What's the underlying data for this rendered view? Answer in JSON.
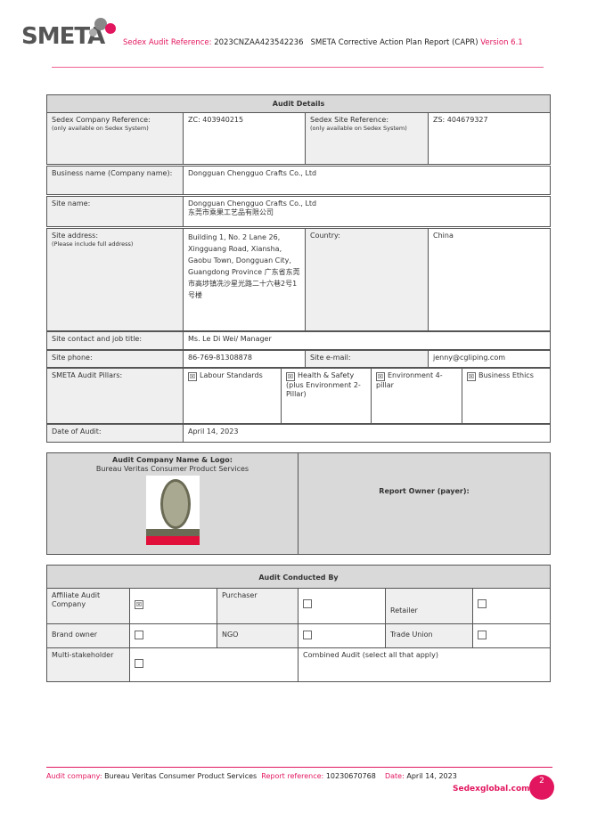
{
  "header": {
    "logo_text": "SMETA",
    "audit_ref_label": "Sedex Audit Reference:",
    "audit_ref_value": "2023CNZAA423542236",
    "report_title": "SMETA Corrective Action Plan Report (CAPR)",
    "version": "Version 6.1"
  },
  "audit_details": {
    "title": "Audit Details",
    "company_ref_label": "Sedex Company Reference:",
    "company_ref_note": "(only available on Sedex System)",
    "company_ref_value": "ZC: 403940215",
    "site_ref_label": "Sedex Site Reference:",
    "site_ref_note": "(only available on Sedex System)",
    "site_ref_value": "ZS: 404679327",
    "business_name_label": "Business name (Company name):",
    "business_name_value": "Dongguan Chengguo Crafts Co., Ltd",
    "site_name_label": "Site name:",
    "site_name_value": "Dongguan Chengguo Crafts Co., Ltd",
    "site_name_value_cn": "东莞市乘果工艺品有限公司",
    "site_address_label": "Site address:",
    "site_address_note": "(Please include full address)",
    "site_address_value": "Building 1, No. 2 Lane 26, Xingguang Road, Xiansha, Gaobu Town, Dongguan City, Guangdong Province",
    "site_address_value_cn": "广东省东莞市高埗镇冼沙星光路二十六巷2号1号楼",
    "country_label": "Country:",
    "country_value": "China",
    "contact_label": "Site contact and job title:",
    "contact_value": "Ms. Le Di Wei/ Manager",
    "phone_label": "Site phone:",
    "phone_value": "86-769-81308878",
    "email_label": "Site e-mail:",
    "email_value": "jenny@cgliping.com",
    "pillars_label": "SMETA Audit Pillars:",
    "pillars": [
      {
        "label": "Labour Standards",
        "checked": true
      },
      {
        "label": "Health & Safety (plus Environment 2-Pillar)",
        "checked": true
      },
      {
        "label": "Environment 4-pillar",
        "checked": true
      },
      {
        "label": "Business Ethics",
        "checked": true
      }
    ],
    "date_label": "Date of Audit:",
    "date_value": "April 14, 2023"
  },
  "audit_company": {
    "title": "Audit Company Name & Logo:",
    "name": "Bureau Veritas Consumer Product Services",
    "logo_text": "BUREAU VERITAS",
    "report_owner_label": "Report Owner (payer):"
  },
  "conducted_by": {
    "title": "Audit Conducted By",
    "options": [
      {
        "label": "Affiliate Audit Company",
        "checked": true
      },
      {
        "label": "Purchaser",
        "checked": false
      },
      {
        "label": "Retailer",
        "checked": false
      },
      {
        "label": "Brand owner",
        "checked": false
      },
      {
        "label": "NGO",
        "checked": false
      },
      {
        "label": "Trade Union",
        "checked": false
      },
      {
        "label": "Multi-stakeholder",
        "checked": false
      }
    ],
    "combined_label": "Combined Audit (select all that apply)"
  },
  "footer": {
    "company_label": "Audit company:",
    "company_value": "Bureau Veritas Consumer Product Services",
    "report_ref_label": "Report reference:",
    "report_ref_value": "10230670768",
    "date_label": "Date:",
    "date_value": "April 14, 2023",
    "site": "Sedexglobal.com",
    "page_number": "2"
  },
  "colors": {
    "accent": "#e2165e",
    "header_gray": "#d9d9d9",
    "label_gray": "#efefef"
  }
}
